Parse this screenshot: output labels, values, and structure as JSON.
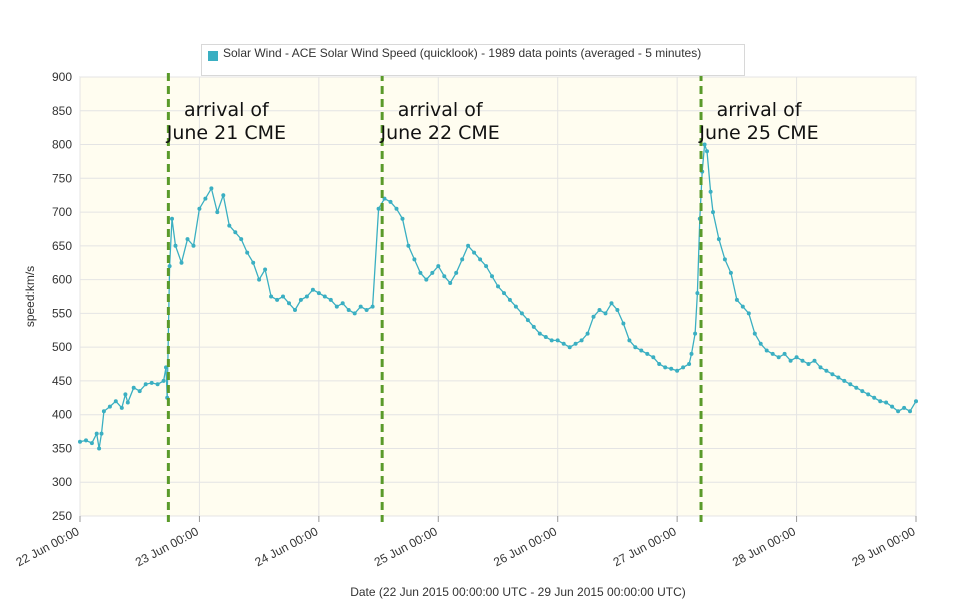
{
  "chart_data": {
    "type": "line",
    "legend": {
      "text": "Solar Wind - ACE Solar Wind Speed (quicklook) - 1989 data points (averaged - 5 minutes)",
      "position": "top-center"
    },
    "ylabel": "speed:km/s",
    "xlabel": "Date (22 Jun 2015 00:00:00 UTC - 29 Jun 2015 00:00:00 UTC)",
    "ylim": [
      250,
      900
    ],
    "yticks": [
      250,
      300,
      350,
      400,
      450,
      500,
      550,
      600,
      650,
      700,
      750,
      800,
      850,
      900
    ],
    "xlim_days": [
      0,
      7
    ],
    "xticks": [
      "22 Jun 00:00",
      "23 Jun 00:00",
      "24 Jun 00:00",
      "25 Jun 00:00",
      "26 Jun 00:00",
      "27 Jun 00:00",
      "28 Jun 00:00",
      "29 Jun 00:00"
    ],
    "grid": true,
    "series": [
      {
        "name": "Solar Wind - ACE Solar Wind Speed (quicklook)",
        "color": "#3aafc2",
        "points": [
          [
            0.0,
            360
          ],
          [
            0.05,
            362
          ],
          [
            0.1,
            358
          ],
          [
            0.14,
            372
          ],
          [
            0.16,
            350
          ],
          [
            0.18,
            372
          ],
          [
            0.2,
            405
          ],
          [
            0.25,
            412
          ],
          [
            0.3,
            420
          ],
          [
            0.35,
            410
          ],
          [
            0.38,
            430
          ],
          [
            0.4,
            418
          ],
          [
            0.45,
            440
          ],
          [
            0.5,
            435
          ],
          [
            0.55,
            445
          ],
          [
            0.6,
            447
          ],
          [
            0.65,
            445
          ],
          [
            0.7,
            450
          ],
          [
            0.72,
            470
          ],
          [
            0.73,
            425
          ],
          [
            0.75,
            620
          ],
          [
            0.77,
            690
          ],
          [
            0.8,
            650
          ],
          [
            0.85,
            625
          ],
          [
            0.9,
            660
          ],
          [
            0.95,
            650
          ],
          [
            1.0,
            705
          ],
          [
            1.05,
            720
          ],
          [
            1.1,
            735
          ],
          [
            1.15,
            700
          ],
          [
            1.2,
            725
          ],
          [
            1.25,
            680
          ],
          [
            1.3,
            670
          ],
          [
            1.35,
            660
          ],
          [
            1.4,
            640
          ],
          [
            1.45,
            625
          ],
          [
            1.5,
            600
          ],
          [
            1.55,
            615
          ],
          [
            1.6,
            575
          ],
          [
            1.65,
            570
          ],
          [
            1.7,
            575
          ],
          [
            1.75,
            565
          ],
          [
            1.8,
            555
          ],
          [
            1.85,
            570
          ],
          [
            1.9,
            575
          ],
          [
            1.95,
            585
          ],
          [
            2.0,
            580
          ],
          [
            2.05,
            575
          ],
          [
            2.1,
            570
          ],
          [
            2.15,
            560
          ],
          [
            2.2,
            565
          ],
          [
            2.25,
            555
          ],
          [
            2.3,
            550
          ],
          [
            2.35,
            560
          ],
          [
            2.4,
            555
          ],
          [
            2.45,
            560
          ],
          [
            2.5,
            705
          ],
          [
            2.55,
            720
          ],
          [
            2.6,
            715
          ],
          [
            2.65,
            705
          ],
          [
            2.7,
            690
          ],
          [
            2.75,
            650
          ],
          [
            2.8,
            630
          ],
          [
            2.85,
            610
          ],
          [
            2.9,
            600
          ],
          [
            2.95,
            610
          ],
          [
            3.0,
            620
          ],
          [
            3.05,
            605
          ],
          [
            3.1,
            595
          ],
          [
            3.15,
            610
          ],
          [
            3.2,
            630
          ],
          [
            3.25,
            650
          ],
          [
            3.3,
            640
          ],
          [
            3.35,
            630
          ],
          [
            3.4,
            620
          ],
          [
            3.45,
            605
          ],
          [
            3.5,
            590
          ],
          [
            3.55,
            580
          ],
          [
            3.6,
            570
          ],
          [
            3.65,
            560
          ],
          [
            3.7,
            550
          ],
          [
            3.75,
            540
          ],
          [
            3.8,
            530
          ],
          [
            3.85,
            520
          ],
          [
            3.9,
            515
          ],
          [
            3.95,
            510
          ],
          [
            4.0,
            510
          ],
          [
            4.05,
            505
          ],
          [
            4.1,
            500
          ],
          [
            4.15,
            505
          ],
          [
            4.2,
            510
          ],
          [
            4.25,
            520
          ],
          [
            4.3,
            545
          ],
          [
            4.35,
            555
          ],
          [
            4.4,
            550
          ],
          [
            4.45,
            565
          ],
          [
            4.5,
            555
          ],
          [
            4.55,
            535
          ],
          [
            4.6,
            510
          ],
          [
            4.65,
            500
          ],
          [
            4.7,
            495
          ],
          [
            4.75,
            490
          ],
          [
            4.8,
            485
          ],
          [
            4.85,
            475
          ],
          [
            4.9,
            470
          ],
          [
            4.95,
            468
          ],
          [
            5.0,
            465
          ],
          [
            5.05,
            470
          ],
          [
            5.1,
            475
          ],
          [
            5.12,
            490
          ],
          [
            5.15,
            520
          ],
          [
            5.17,
            580
          ],
          [
            5.19,
            690
          ],
          [
            5.21,
            760
          ],
          [
            5.23,
            800
          ],
          [
            5.25,
            790
          ],
          [
            5.28,
            730
          ],
          [
            5.3,
            700
          ],
          [
            5.35,
            660
          ],
          [
            5.4,
            630
          ],
          [
            5.45,
            610
          ],
          [
            5.5,
            570
          ],
          [
            5.55,
            560
          ],
          [
            5.6,
            550
          ],
          [
            5.65,
            520
          ],
          [
            5.7,
            505
          ],
          [
            5.75,
            495
          ],
          [
            5.8,
            490
          ],
          [
            5.85,
            485
          ],
          [
            5.9,
            490
          ],
          [
            5.95,
            480
          ],
          [
            6.0,
            485
          ],
          [
            6.05,
            480
          ],
          [
            6.1,
            475
          ],
          [
            6.15,
            480
          ],
          [
            6.2,
            470
          ],
          [
            6.25,
            465
          ],
          [
            6.3,
            460
          ],
          [
            6.35,
            455
          ],
          [
            6.4,
            450
          ],
          [
            6.45,
            445
          ],
          [
            6.5,
            440
          ],
          [
            6.55,
            435
          ],
          [
            6.6,
            430
          ],
          [
            6.65,
            425
          ],
          [
            6.7,
            420
          ],
          [
            6.75,
            418
          ],
          [
            6.8,
            412
          ],
          [
            6.85,
            405
          ],
          [
            6.9,
            410
          ],
          [
            6.95,
            405
          ],
          [
            7.0,
            420
          ]
        ]
      }
    ],
    "annotations": [
      {
        "day": 0.74,
        "line1": "arrival of",
        "line2": "June 21 CME"
      },
      {
        "day": 2.53,
        "line1": "arrival of",
        "line2": "June 22 CME"
      },
      {
        "day": 5.2,
        "line1": "arrival of",
        "line2": "June 25 CME"
      }
    ],
    "colors": {
      "plot_background": "#fffdf0",
      "grid": "#e4e4e4",
      "marker_line": "#5a9a2a",
      "series": "#3aafc2"
    }
  }
}
